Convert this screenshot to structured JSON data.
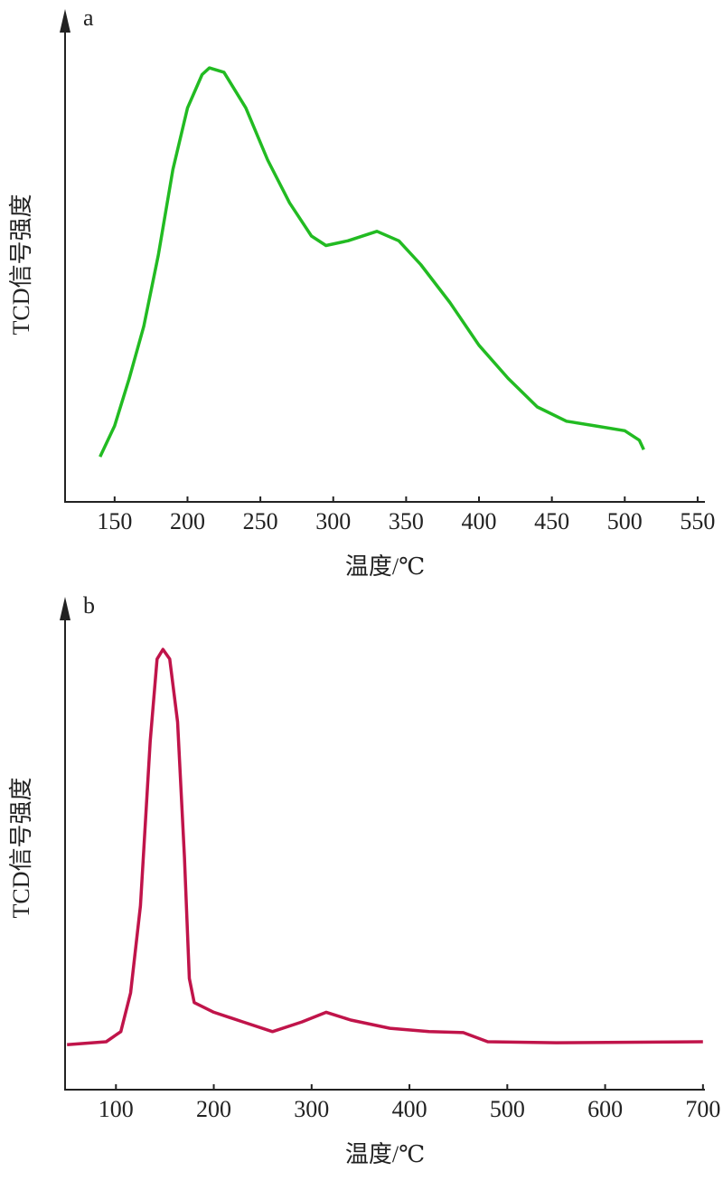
{
  "chart_data": [
    {
      "type": "line",
      "label": "a",
      "y_label": "TCD信号强度",
      "x_label": "温度/℃",
      "xlim": [
        116,
        555
      ],
      "xticks": [
        150,
        200,
        250,
        300,
        350,
        400,
        450,
        500,
        550
      ],
      "ylim": [
        0,
        100
      ],
      "series": [
        {
          "color": "#22bb22",
          "x": [
            140,
            150,
            160,
            170,
            180,
            190,
            200,
            210,
            215,
            225,
            240,
            255,
            270,
            285,
            295,
            310,
            330,
            345,
            360,
            380,
            400,
            420,
            440,
            460,
            480,
            500,
            510,
            513
          ],
          "values": [
            9.5,
            16,
            26,
            37,
            52,
            70,
            83,
            90,
            91.4,
            90.5,
            83,
            72,
            63,
            56,
            54,
            55,
            57,
            55,
            50,
            42,
            33,
            26,
            20,
            17,
            16,
            15,
            13,
            11
          ]
        }
      ]
    },
    {
      "type": "line",
      "label": "b",
      "y_label": "TCD信号强度",
      "x_label": "温度/℃",
      "xlim": [
        48,
        702
      ],
      "xticks": [
        100,
        200,
        300,
        400,
        500,
        600,
        700
      ],
      "ylim": [
        0,
        100
      ],
      "series": [
        {
          "color": "#c0144a",
          "x": [
            50,
            90,
            105,
            115,
            125,
            135,
            142,
            148,
            155,
            163,
            170,
            175,
            180,
            200,
            230,
            260,
            290,
            315,
            340,
            380,
            420,
            455,
            480,
            550,
            700
          ],
          "values": [
            9.3,
            9.9,
            12,
            20,
            38,
            72,
            89,
            91,
            89,
            76,
            48,
            23,
            18,
            16,
            14,
            12,
            14,
            16,
            14.4,
            12.7,
            12,
            11.8,
            9.9,
            9.7,
            9.9
          ]
        }
      ]
    }
  ]
}
